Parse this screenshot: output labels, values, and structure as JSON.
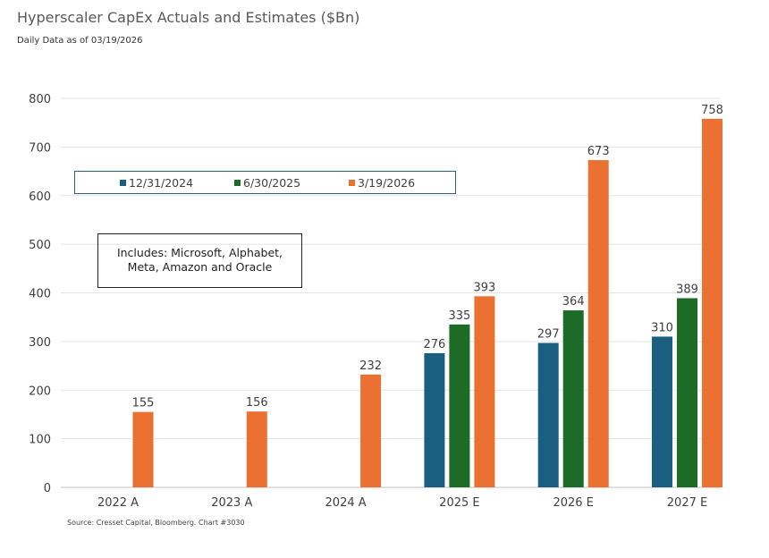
{
  "chart_data": {
    "type": "bar",
    "title": "Hyperscaler CapEx Actuals and Estimates ($Bn)",
    "subtitle": "Daily Data as of 03/19/2026",
    "source": "Source: Cresset Capital, Bloomberg. Chart #3030",
    "note": [
      "Includes: Microsoft, Alphabet,",
      "Meta, Amazon and Oracle"
    ],
    "categories": [
      "2022 A",
      "2023 A",
      "2024 A",
      "2025 E",
      "2026 E",
      "2027 E"
    ],
    "series": [
      {
        "name": "12/31/2024",
        "color": "#1a5e80",
        "values": [
          null,
          null,
          null,
          276,
          297,
          310
        ]
      },
      {
        "name": "6/30/2025",
        "color": "#1c6b26",
        "values": [
          null,
          null,
          null,
          335,
          364,
          389
        ]
      },
      {
        "name": "3/19/2026",
        "color": "#ea7131",
        "values": [
          155,
          156,
          232,
          393,
          673,
          758
        ]
      }
    ],
    "ylim": [
      0,
      800
    ],
    "yticks": [
      0,
      100,
      200,
      300,
      400,
      500,
      600,
      700,
      800
    ],
    "grid": true,
    "legend": "top-left"
  }
}
